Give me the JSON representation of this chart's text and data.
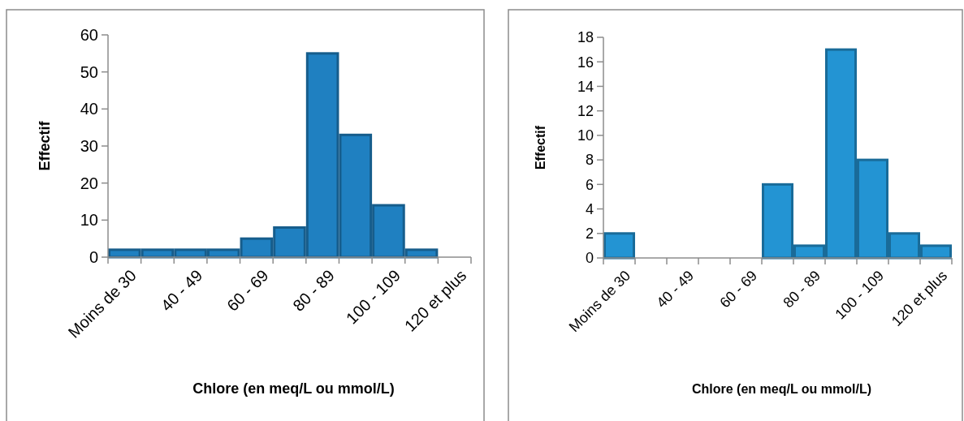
{
  "chart_data": [
    {
      "type": "bar",
      "xlabel": "Chlore (en meq/L ou mmol/L)",
      "ylabel": "Effectif",
      "categories": [
        "Moins de 30",
        null,
        "40 - 49",
        null,
        "60 - 69",
        null,
        "80 - 89",
        null,
        "100 - 109",
        null,
        "120 et plus"
      ],
      "values": [
        2,
        2,
        2,
        2,
        5,
        8,
        55,
        33,
        14,
        2,
        0
      ],
      "color": "#1f80c1",
      "ylim": [
        0,
        60
      ],
      "yticks": [
        0,
        10,
        20,
        30,
        40,
        50,
        60
      ],
      "grid": false
    },
    {
      "type": "bar",
      "xlabel": "Chlore (en meq/L ou mmol/L)",
      "ylabel": "Effectif",
      "categories": [
        "Moins de 30",
        null,
        "40 - 49",
        null,
        "60 - 69",
        null,
        "80 - 89",
        null,
        "100 - 109",
        null,
        "120 et plus"
      ],
      "values": [
        2,
        0,
        0,
        0,
        0,
        6,
        1,
        17,
        8,
        2,
        1
      ],
      "color": "#2394d3",
      "ylim": [
        0,
        18
      ],
      "yticks": [
        0,
        2,
        4,
        6,
        8,
        10,
        12,
        14,
        16,
        18
      ],
      "grid": false
    }
  ]
}
